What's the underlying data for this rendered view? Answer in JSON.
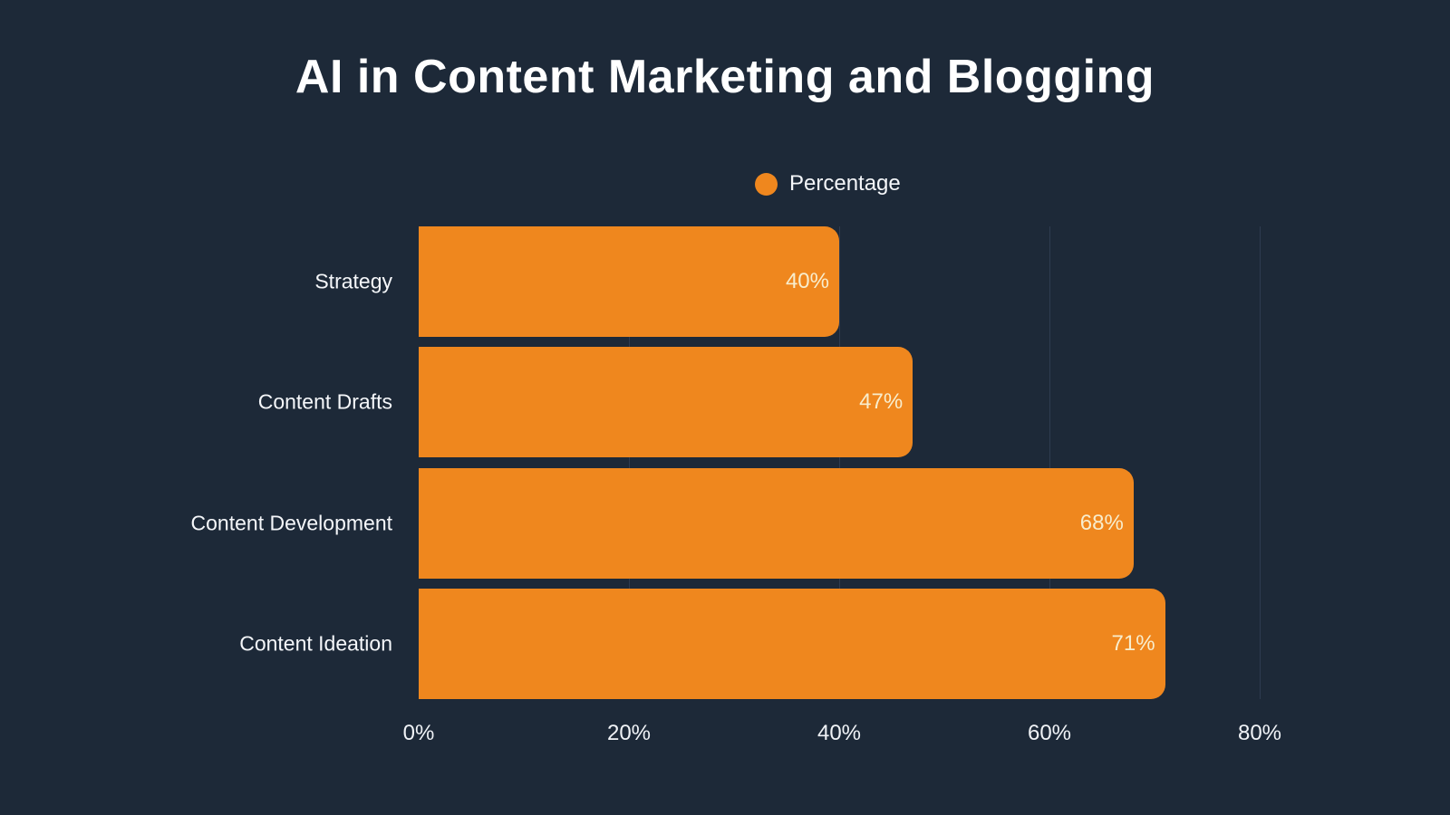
{
  "title": "AI in Content Marketing and Blogging",
  "legend": {
    "label": "Percentage",
    "marker_color": "#EF871E"
  },
  "chart_data": {
    "type": "bar",
    "orientation": "horizontal",
    "title": "AI in Content Marketing and Blogging",
    "series_name": "Percentage",
    "categories": [
      "Strategy",
      "Content Drafts",
      "Content Development",
      "Content Ideation"
    ],
    "values": [
      40,
      47,
      68,
      71
    ],
    "value_labels": [
      "40%",
      "47%",
      "68%",
      "71%"
    ],
    "x_ticks": [
      "0%",
      "20%",
      "40%",
      "60%",
      "80%"
    ],
    "xlim": [
      0,
      80
    ],
    "xlabel": "",
    "ylabel": "",
    "grid": true,
    "legend_position": "top",
    "bar_color": "#EF871E",
    "value_label_color": "#F8EDCD",
    "text_color": "#F5F7FA",
    "gridline_color": "#2E3B50",
    "background_color": "#1D2938"
  }
}
